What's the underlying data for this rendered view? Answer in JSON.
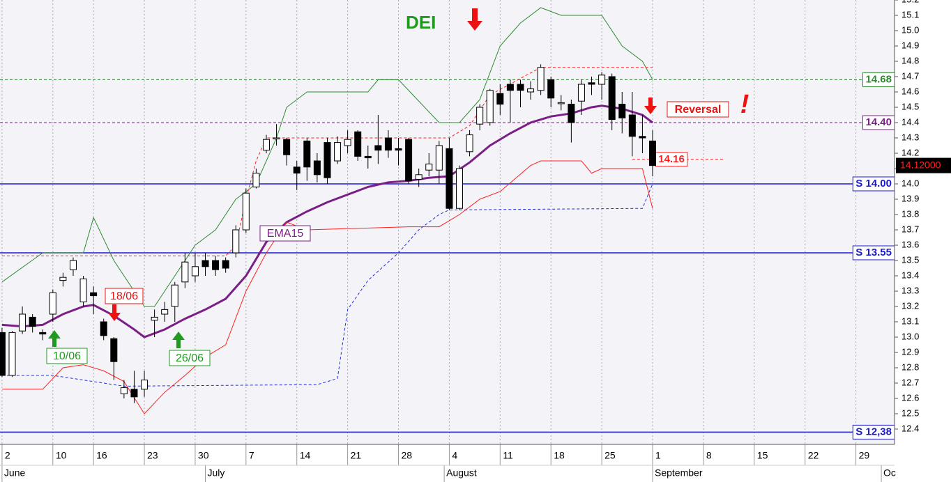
{
  "chart_data": {
    "type": "candlestick",
    "ohlc": [
      [
        13.03,
        13.06,
        12.74,
        12.75
      ],
      [
        12.75,
        13.04,
        12.74,
        13.03
      ],
      [
        13.04,
        13.2,
        13.02,
        13.15
      ],
      [
        13.13,
        13.15,
        13.03,
        13.07
      ],
      [
        13.03,
        13.05,
        12.98,
        13.02
      ],
      [
        13.15,
        13.31,
        13.1,
        13.29
      ],
      [
        13.37,
        13.42,
        13.33,
        13.39
      ],
      [
        13.44,
        13.52,
        13.4,
        13.5
      ],
      [
        13.23,
        13.4,
        13.2,
        13.38
      ],
      [
        13.29,
        13.33,
        13.15,
        13.27
      ],
      [
        13.1,
        13.12,
        12.98,
        13.01
      ],
      [
        12.99,
        13.0,
        12.72,
        12.84
      ],
      [
        12.63,
        12.72,
        12.6,
        12.67
      ],
      [
        12.66,
        12.78,
        12.57,
        12.61
      ],
      [
        12.66,
        12.78,
        12.61,
        12.72
      ],
      [
        13.11,
        13.18,
        13.0,
        13.13
      ],
      [
        13.15,
        13.23,
        13.1,
        13.18
      ],
      [
        13.2,
        13.36,
        13.1,
        13.34
      ],
      [
        13.36,
        13.55,
        13.32,
        13.49
      ],
      [
        13.4,
        13.55,
        13.36,
        13.46
      ],
      [
        13.5,
        13.55,
        13.4,
        13.46
      ],
      [
        13.5,
        13.53,
        13.4,
        13.44
      ],
      [
        13.5,
        13.52,
        13.42,
        13.45
      ],
      [
        13.55,
        13.73,
        13.52,
        13.7
      ],
      [
        13.7,
        13.97,
        13.68,
        13.94
      ],
      [
        13.98,
        14.1,
        13.97,
        14.07
      ],
      [
        14.22,
        14.32,
        14.2,
        14.29
      ],
      [
        14.3,
        14.39,
        14.25,
        14.3
      ],
      [
        14.29,
        14.3,
        14.12,
        14.19
      ],
      [
        14.11,
        14.15,
        13.96,
        14.07
      ],
      [
        14.28,
        14.3,
        14.02,
        14.11
      ],
      [
        14.15,
        14.2,
        14.01,
        14.06
      ],
      [
        14.27,
        14.3,
        14.0,
        14.04
      ],
      [
        14.15,
        14.31,
        14.13,
        14.27
      ],
      [
        14.25,
        14.35,
        14.2,
        14.29
      ],
      [
        14.34,
        14.35,
        14.15,
        14.18
      ],
      [
        14.18,
        14.25,
        14.1,
        14.17
      ],
      [
        14.25,
        14.45,
        14.13,
        14.22
      ],
      [
        14.3,
        14.35,
        14.17,
        14.22
      ],
      [
        14.23,
        14.3,
        14.12,
        14.22
      ],
      [
        14.29,
        14.3,
        14.0,
        14.02
      ],
      [
        14.03,
        14.1,
        13.98,
        14.06
      ],
      [
        14.09,
        14.2,
        14.05,
        14.13
      ],
      [
        14.09,
        14.28,
        14.0,
        14.25
      ],
      [
        14.23,
        14.3,
        13.83,
        13.84
      ],
      [
        13.84,
        14.12,
        13.83,
        14.1
      ],
      [
        14.21,
        14.35,
        14.18,
        14.32
      ],
      [
        14.39,
        14.52,
        14.35,
        14.5
      ],
      [
        14.4,
        14.62,
        14.38,
        14.61
      ],
      [
        14.59,
        14.65,
        14.45,
        14.52
      ],
      [
        14.65,
        14.68,
        14.4,
        14.61
      ],
      [
        14.65,
        14.68,
        14.5,
        14.61
      ],
      [
        14.6,
        14.67,
        14.55,
        14.62
      ],
      [
        14.61,
        14.78,
        14.58,
        14.76
      ],
      [
        14.68,
        14.7,
        14.5,
        14.56
      ],
      [
        14.53,
        14.58,
        14.48,
        14.53
      ],
      [
        14.52,
        14.55,
        14.27,
        14.4
      ],
      [
        14.54,
        14.68,
        14.45,
        14.65
      ],
      [
        14.66,
        14.7,
        14.58,
        14.65
      ],
      [
        14.65,
        14.73,
        14.55,
        14.71
      ],
      [
        14.7,
        14.72,
        14.35,
        14.42
      ],
      [
        14.52,
        14.6,
        14.33,
        14.43
      ],
      [
        14.45,
        14.6,
        14.18,
        14.31
      ],
      [
        14.31,
        14.45,
        14.2,
        14.3
      ],
      [
        14.28,
        14.35,
        14.05,
        14.12
      ]
    ],
    "series": [
      {
        "name": "EMA15",
        "color": "#7b1f86",
        "width": 3,
        "dash": false,
        "x": [
          0,
          2,
          4,
          6,
          8,
          9,
          11,
          13,
          14,
          16,
          18,
          20,
          22,
          24,
          26,
          28,
          30,
          32,
          34,
          36,
          38,
          40,
          42,
          44,
          46,
          48,
          50,
          52,
          54,
          56,
          58,
          59,
          61,
          63,
          64
        ],
        "values": [
          13.08,
          13.07,
          13.08,
          13.15,
          13.2,
          13.21,
          13.14,
          13.05,
          13.0,
          13.05,
          13.12,
          13.18,
          13.25,
          13.4,
          13.62,
          13.75,
          13.82,
          13.88,
          13.93,
          13.98,
          14.01,
          14.02,
          14.04,
          14.05,
          14.14,
          14.25,
          14.33,
          14.4,
          14.44,
          14.46,
          14.5,
          14.51,
          14.49,
          14.45,
          14.4
        ]
      },
      {
        "color": "#2e8b2e",
        "width": 1,
        "dash": false,
        "x": [
          0,
          4,
          8,
          9,
          11,
          14,
          15,
          17,
          19,
          21,
          23,
          25,
          27,
          28,
          30,
          36,
          37,
          39,
          43,
          45,
          47,
          49,
          51,
          53,
          55,
          59,
          61,
          63,
          64
        ],
        "values": [
          13.36,
          13.55,
          13.55,
          13.78,
          13.5,
          13.2,
          13.2,
          13.4,
          13.6,
          13.7,
          13.9,
          14.0,
          14.3,
          14.5,
          14.6,
          14.6,
          14.68,
          14.68,
          14.4,
          14.4,
          14.55,
          14.9,
          15.05,
          15.15,
          15.1,
          15.1,
          14.9,
          14.8,
          14.68
        ]
      },
      {
        "color": "#ff2020",
        "width": 1,
        "dash": false,
        "x": [
          0,
          4,
          6,
          8,
          10,
          12,
          14,
          16,
          18,
          20,
          22,
          24,
          26,
          28,
          30,
          40,
          43,
          45,
          47,
          49,
          52,
          53,
          57,
          58,
          59,
          62,
          63,
          64
        ],
        "values": [
          12.66,
          12.66,
          12.8,
          12.82,
          12.78,
          12.71,
          12.5,
          12.64,
          12.75,
          12.87,
          12.95,
          13.3,
          13.55,
          13.75,
          13.7,
          13.72,
          13.72,
          13.8,
          13.9,
          13.95,
          14.12,
          14.15,
          14.15,
          14.07,
          14.1,
          14.1,
          14.1,
          13.84
        ]
      },
      {
        "color": "#2030e0",
        "width": 1,
        "dash": true,
        "x": [
          0,
          5,
          12,
          31,
          33,
          34,
          36,
          39,
          41,
          43,
          44,
          63,
          64
        ],
        "values": [
          12.75,
          12.75,
          12.68,
          12.69,
          12.73,
          13.18,
          13.37,
          13.55,
          13.7,
          13.8,
          13.83,
          13.84,
          14.0
        ]
      },
      {
        "color": "#ff2020",
        "width": 1,
        "dash": true,
        "x": [
          0,
          22,
          23,
          24,
          25,
          26,
          44,
          46,
          48,
          53,
          64
        ],
        "values": [
          13.53,
          13.53,
          13.6,
          13.9,
          14.15,
          14.3,
          14.3,
          14.38,
          14.58,
          14.76,
          14.76
        ]
      }
    ],
    "levels": [
      {
        "value": 14.68,
        "label": "14.68",
        "color": "#2e8b2e",
        "dash": true
      },
      {
        "value": 14.4,
        "label": "14.40",
        "color": "#7b1f86",
        "dash": true
      },
      {
        "value": 14.16,
        "label": "14.16",
        "color": "#ff2020",
        "dash": true,
        "xrange": [
          62,
          71
        ]
      },
      {
        "value": 14.0,
        "label": "S 14.00",
        "color": "#1a1ad0",
        "dash": false
      },
      {
        "value": 13.55,
        "label": "S 13.55",
        "color": "#1a1ad0",
        "dash": false
      },
      {
        "value": 12.38,
        "label": "S 12,38",
        "color": "#1a1ad0",
        "dash": false
      }
    ],
    "last_price": {
      "value": 14.12,
      "label": "14.12000"
    },
    "annotations": [
      "DEI",
      "Reversal",
      "!",
      "18/06",
      "10/06",
      "26/06",
      "EMA15"
    ],
    "xlim": [
      -0.2,
      87.8
    ],
    "ylim": [
      12.3,
      15.2
    ],
    "xticks": [
      {
        "value": 0,
        "label": "2"
      },
      {
        "value": 5,
        "label": "10"
      },
      {
        "value": 9,
        "label": "16"
      },
      {
        "value": 14,
        "label": "23"
      },
      {
        "value": 19,
        "label": "30"
      },
      {
        "value": 24,
        "label": "7"
      },
      {
        "value": 29,
        "label": "14"
      },
      {
        "value": 34,
        "label": "21"
      },
      {
        "value": 39,
        "label": "28"
      },
      {
        "value": 44,
        "label": "4"
      },
      {
        "value": 49,
        "label": "11"
      },
      {
        "value": 54,
        "label": "18"
      },
      {
        "value": 59,
        "label": "25"
      },
      {
        "value": 64,
        "label": "1"
      },
      {
        "value": 69,
        "label": "8"
      },
      {
        "value": 74,
        "label": "15"
      },
      {
        "value": 79,
        "label": "22"
      },
      {
        "value": 84,
        "label": "29"
      }
    ],
    "months": [
      {
        "value": 0,
        "label": "June"
      },
      {
        "value": 20,
        "label": "July"
      },
      {
        "value": 43.5,
        "label": "August"
      },
      {
        "value": 64,
        "label": "September"
      },
      {
        "value": 86.5,
        "label": "Oc"
      }
    ],
    "yticks": [
      12.4,
      12.5,
      12.6,
      12.7,
      12.8,
      12.9,
      {
        "value": 13,
        "label": "13.0"
      },
      13.1,
      13.2,
      13.3,
      13.4,
      13.5,
      13.6,
      13.7,
      13.8,
      13.9,
      {
        "value": 14,
        "label": "14.0"
      },
      14.1,
      14.2,
      14.3,
      14.4,
      14.5,
      14.6,
      14.7,
      14.8,
      14.9,
      {
        "value": 15,
        "label": "15.0"
      },
      15.1,
      15.2
    ],
    "grid": true
  }
}
